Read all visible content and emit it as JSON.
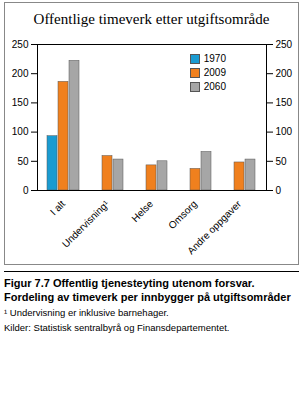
{
  "chart_data": {
    "type": "bar",
    "title": "Offentlige timeverk etter utgiftsområde",
    "caption": "Figur 7.7 Offentlig tjenesteyting utenom forsvar. Fordeling av timeverk per innbygger på utgiftsområder",
    "annotations": [
      "¹ Undervisning er inklusive barnehager.",
      "Kilder: Statistisk sentralbyrå og Finansdepartementet."
    ],
    "categories": [
      "I alt",
      "Undervisning¹",
      "Helse",
      "Omsorg",
      "Andre oppgaver"
    ],
    "series": [
      {
        "name": "1970",
        "color": "#1a9bd1",
        "values": [
          93,
          null,
          null,
          null,
          null
        ]
      },
      {
        "name": "2009",
        "color": "#f0801e",
        "values": [
          186,
          59,
          43,
          37,
          48
        ]
      },
      {
        "name": "2060",
        "color": "#a6a6a6",
        "values": [
          222,
          53,
          50,
          66,
          53
        ]
      }
    ],
    "ylim": [
      0,
      250
    ],
    "yticks": [
      0,
      50,
      100,
      150,
      200,
      250
    ],
    "legend": "top-right",
    "grid": false
  }
}
